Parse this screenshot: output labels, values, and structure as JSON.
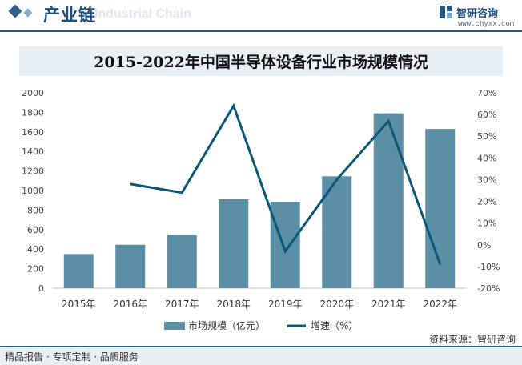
{
  "header": {
    "section_title": "产业链",
    "watermark_text": "Industrial Chain",
    "brand_name": "智研咨询",
    "brand_url": "www.chyxx.com"
  },
  "footer": {
    "left_text": "精品报告 · 专项定制 · 品质服务",
    "source_text": "资料来源：智研咨询"
  },
  "colors": {
    "bar": "#5b8fa6",
    "line": "#0d5878",
    "accent": "#1f5a8a"
  },
  "chart_data": {
    "type": "bar+line",
    "title": "2015-2022年中国半导体设备行业市场规模情况",
    "categories": [
      "2015年",
      "2016年",
      "2017年",
      "2018年",
      "2019年",
      "2020年",
      "2021年",
      "2022年"
    ],
    "series": [
      {
        "name": "市场规模（亿元）",
        "type": "bar",
        "axis": "left",
        "values": [
          350,
          445,
          550,
          910,
          885,
          1145,
          1790,
          1630
        ]
      },
      {
        "name": "增速（%）",
        "type": "line",
        "axis": "right",
        "values": [
          null,
          28,
          24,
          64,
          -3,
          30,
          57,
          -9
        ]
      }
    ],
    "y_left": {
      "min": 0,
      "max": 2000,
      "ticks": [
        "0",
        "200",
        "400",
        "600",
        "800",
        "1000",
        "1200",
        "1400",
        "1600",
        "1800",
        "2000"
      ]
    },
    "y_right": {
      "min": -20,
      "max": 70,
      "ticks": [
        "-20%",
        "-10%",
        "0%",
        "10%",
        "20%",
        "30%",
        "40%",
        "50%",
        "60%",
        "70%"
      ]
    },
    "grid": false,
    "legend_position": "bottom"
  }
}
